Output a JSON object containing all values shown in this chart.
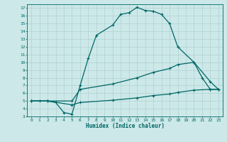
{
  "bg_color": "#cce8e8",
  "grid_color": "#aacccc",
  "line_color": "#006666",
  "xlabel": "Humidex (Indice chaleur)",
  "xlim": [
    -0.5,
    23.5
  ],
  "ylim": [
    3,
    17.5
  ],
  "xticks": [
    0,
    1,
    2,
    3,
    4,
    5,
    6,
    7,
    8,
    9,
    10,
    11,
    12,
    13,
    14,
    15,
    16,
    17,
    18,
    19,
    20,
    21,
    22,
    23
  ],
  "yticks": [
    3,
    4,
    5,
    6,
    7,
    8,
    9,
    10,
    11,
    12,
    13,
    14,
    15,
    16,
    17
  ],
  "line1_x": [
    0,
    1,
    2,
    3,
    4,
    5,
    6,
    7,
    8,
    10,
    11,
    12,
    13,
    14,
    15,
    16,
    17,
    18,
    20,
    21,
    22,
    23
  ],
  "line1_y": [
    5,
    5,
    5,
    4.8,
    3.5,
    3.3,
    7.0,
    10.5,
    13.5,
    14.8,
    16.2,
    16.4,
    17.1,
    16.7,
    16.6,
    16.2,
    15.0,
    12.0,
    10.0,
    8.0,
    6.5,
    6.5
  ],
  "line2_x": [
    0,
    2,
    5,
    6,
    10,
    13,
    15,
    17,
    18,
    20,
    22,
    23
  ],
  "line2_y": [
    5.0,
    5.0,
    5.0,
    6.5,
    7.2,
    8.0,
    8.7,
    9.2,
    9.7,
    10.0,
    7.5,
    6.5
  ],
  "line3_x": [
    0,
    2,
    5,
    6,
    10,
    13,
    15,
    17,
    18,
    20,
    22,
    23
  ],
  "line3_y": [
    5.0,
    5.0,
    4.5,
    4.8,
    5.1,
    5.4,
    5.7,
    5.9,
    6.1,
    6.4,
    6.5,
    6.5
  ]
}
